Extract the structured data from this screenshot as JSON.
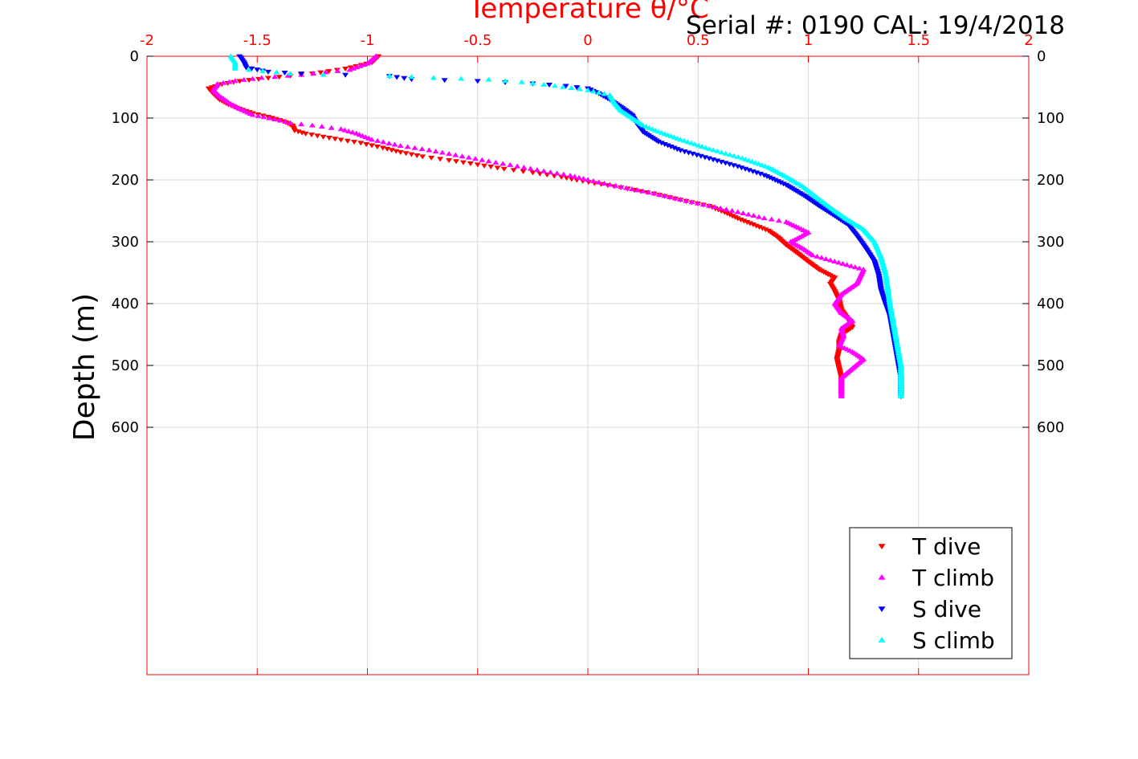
{
  "header": {
    "serial_text": "Serial #: 0190  CAL: 19/4/2018"
  },
  "colors": {
    "x_axis": "#ff0000",
    "y_axis": "#000000",
    "grid": "#d9d9d9",
    "T_dive": "#ff0000",
    "T_climb": "#ff00ff",
    "S_dive": "#0000ff",
    "S_climb": "#00ffff"
  },
  "chart_data": {
    "type": "scatter",
    "title": "Temperature θ/°C",
    "xlabel": "Temperature θ/°C",
    "ylabel": "Depth (m)",
    "xlim": [
      -2,
      2
    ],
    "ylim": [
      0,
      1000
    ],
    "y_reversed": true,
    "x_ticks": [
      -2,
      -1.5,
      -1,
      -0.5,
      0,
      0.5,
      1,
      1.5,
      2
    ],
    "x_tick_labels": [
      "-2",
      "-1.5",
      "-1",
      "-0.5",
      "0",
      "0.5",
      "1",
      "1.5",
      "2"
    ],
    "y_ticks": [
      0,
      100,
      200,
      300,
      400,
      500,
      600
    ],
    "y_tick_labels": [
      "0",
      "100",
      "200",
      "300",
      "400",
      "500",
      "600"
    ],
    "x_axis_location": "top",
    "y_axis_both_sides": true,
    "grid": true,
    "legend_position": "bottom-right",
    "series": [
      {
        "name": "T dive",
        "marker": "triangle-down",
        "points": [
          [
            -0.95,
            0
          ],
          [
            -0.98,
            10
          ],
          [
            -1.1,
            20
          ],
          [
            -1.25,
            28
          ],
          [
            -1.45,
            35
          ],
          [
            -1.58,
            40
          ],
          [
            -1.66,
            45
          ],
          [
            -1.72,
            52
          ],
          [
            -1.7,
            60
          ],
          [
            -1.67,
            70
          ],
          [
            -1.63,
            78
          ],
          [
            -1.58,
            85
          ],
          [
            -1.52,
            92
          ],
          [
            -1.45,
            98
          ],
          [
            -1.38,
            105
          ],
          [
            -1.34,
            112
          ],
          [
            -1.33,
            120
          ],
          [
            -1.28,
            125
          ],
          [
            -1.2,
            130
          ],
          [
            -1.12,
            135
          ],
          [
            -1.03,
            140
          ],
          [
            -0.93,
            148
          ],
          [
            -0.85,
            155
          ],
          [
            -0.75,
            162
          ],
          [
            -0.63,
            168
          ],
          [
            -0.5,
            175
          ],
          [
            -0.38,
            182
          ],
          [
            -0.25,
            188
          ],
          [
            -0.12,
            195
          ],
          [
            -0.05,
            200
          ],
          [
            0.03,
            205
          ],
          [
            0.15,
            212
          ],
          [
            0.3,
            222
          ],
          [
            0.42,
            232
          ],
          [
            0.55,
            242
          ],
          [
            0.62,
            252
          ],
          [
            0.68,
            262
          ],
          [
            0.75,
            272
          ],
          [
            0.82,
            282
          ],
          [
            0.86,
            292
          ],
          [
            0.9,
            305
          ],
          [
            0.95,
            318
          ],
          [
            1.0,
            332
          ],
          [
            1.05,
            345
          ],
          [
            1.12,
            358
          ],
          [
            1.1,
            368
          ],
          [
            1.12,
            380
          ],
          [
            1.14,
            395
          ],
          [
            1.15,
            410
          ],
          [
            1.18,
            425
          ],
          [
            1.2,
            438
          ],
          [
            1.15,
            450
          ],
          [
            1.14,
            462
          ],
          [
            1.14,
            475
          ],
          [
            1.13,
            490
          ],
          [
            1.14,
            505
          ],
          [
            1.15,
            520
          ],
          [
            1.15,
            535
          ],
          [
            1.15,
            548
          ]
        ]
      },
      {
        "name": "T climb",
        "marker": "triangle-up",
        "points": [
          [
            -0.96,
            0
          ],
          [
            -1.0,
            12
          ],
          [
            -1.08,
            22
          ],
          [
            -1.3,
            30
          ],
          [
            -1.48,
            35
          ],
          [
            -1.6,
            40
          ],
          [
            -1.68,
            45
          ],
          [
            -1.7,
            55
          ],
          [
            -1.67,
            65
          ],
          [
            -1.63,
            75
          ],
          [
            -1.58,
            85
          ],
          [
            -1.52,
            95
          ],
          [
            -1.42,
            102
          ],
          [
            -1.35,
            108
          ],
          [
            -1.25,
            112
          ],
          [
            -1.12,
            118
          ],
          [
            -1.05,
            125
          ],
          [
            -0.98,
            135
          ],
          [
            -0.85,
            145
          ],
          [
            -0.72,
            152
          ],
          [
            -0.6,
            160
          ],
          [
            -0.45,
            170
          ],
          [
            -0.32,
            178
          ],
          [
            -0.2,
            186
          ],
          [
            -0.08,
            193
          ],
          [
            0.0,
            200
          ],
          [
            0.1,
            208
          ],
          [
            0.2,
            215
          ],
          [
            0.3,
            222
          ],
          [
            0.42,
            232
          ],
          [
            0.55,
            242
          ],
          [
            0.68,
            252
          ],
          [
            0.8,
            262
          ],
          [
            0.9,
            268
          ],
          [
            1.0,
            285
          ],
          [
            0.95,
            295
          ],
          [
            0.92,
            300
          ],
          [
            0.98,
            312
          ],
          [
            1.02,
            322
          ],
          [
            1.1,
            330
          ],
          [
            1.25,
            345
          ],
          [
            1.22,
            368
          ],
          [
            1.15,
            385
          ],
          [
            1.12,
            400
          ],
          [
            1.15,
            415
          ],
          [
            1.2,
            428
          ],
          [
            1.15,
            440
          ],
          [
            1.16,
            452
          ],
          [
            1.14,
            468
          ],
          [
            1.2,
            478
          ],
          [
            1.25,
            490
          ],
          [
            1.2,
            505
          ],
          [
            1.15,
            520
          ],
          [
            1.15,
            535
          ],
          [
            1.15,
            550
          ]
        ]
      },
      {
        "name": "S dive",
        "marker": "triangle-down",
        "points": [
          [
            -1.58,
            0
          ],
          [
            -1.56,
            10
          ],
          [
            -1.55,
            18
          ],
          [
            -1.45,
            25
          ],
          [
            -1.3,
            28
          ],
          [
            -1.1,
            30
          ],
          [
            -0.9,
            32
          ],
          [
            -0.8,
            37
          ],
          [
            -0.5,
            40
          ],
          [
            -0.25,
            44
          ],
          [
            -0.1,
            48
          ],
          [
            0.0,
            52
          ],
          [
            0.05,
            60
          ],
          [
            0.1,
            70
          ],
          [
            0.15,
            82
          ],
          [
            0.2,
            95
          ],
          [
            0.22,
            108
          ],
          [
            0.25,
            122
          ],
          [
            0.32,
            138
          ],
          [
            0.42,
            152
          ],
          [
            0.55,
            165
          ],
          [
            0.68,
            178
          ],
          [
            0.8,
            192
          ],
          [
            0.9,
            208
          ],
          [
            0.98,
            225
          ],
          [
            1.05,
            242
          ],
          [
            1.12,
            258
          ],
          [
            1.18,
            272
          ],
          [
            1.22,
            290
          ],
          [
            1.26,
            310
          ],
          [
            1.3,
            332
          ],
          [
            1.32,
            355
          ],
          [
            1.33,
            378
          ],
          [
            1.35,
            400
          ],
          [
            1.37,
            420
          ],
          [
            1.38,
            440
          ],
          [
            1.39,
            460
          ],
          [
            1.4,
            480
          ],
          [
            1.41,
            500
          ],
          [
            1.42,
            520
          ],
          [
            1.42,
            540
          ],
          [
            1.42,
            550
          ]
        ]
      },
      {
        "name": "S climb",
        "marker": "triangle-up",
        "points": [
          [
            -1.62,
            0
          ],
          [
            -1.6,
            10
          ],
          [
            -1.6,
            20
          ],
          [
            -1.35,
            28
          ],
          [
            -1.2,
            30
          ],
          [
            -0.9,
            32
          ],
          [
            -0.7,
            35
          ],
          [
            -0.45,
            38
          ],
          [
            -0.3,
            42
          ],
          [
            -0.15,
            48
          ],
          [
            0.0,
            55
          ],
          [
            0.1,
            63
          ],
          [
            0.12,
            75
          ],
          [
            0.15,
            88
          ],
          [
            0.2,
            100
          ],
          [
            0.25,
            112
          ],
          [
            0.32,
            122
          ],
          [
            0.42,
            135
          ],
          [
            0.55,
            150
          ],
          [
            0.7,
            165
          ],
          [
            0.82,
            180
          ],
          [
            0.9,
            195
          ],
          [
            0.98,
            212
          ],
          [
            1.05,
            232
          ],
          [
            1.12,
            250
          ],
          [
            1.18,
            265
          ],
          [
            1.25,
            280
          ],
          [
            1.3,
            300
          ],
          [
            1.33,
            325
          ],
          [
            1.35,
            350
          ],
          [
            1.36,
            375
          ],
          [
            1.37,
            400
          ],
          [
            1.38,
            420
          ],
          [
            1.39,
            440
          ],
          [
            1.4,
            460
          ],
          [
            1.41,
            480
          ],
          [
            1.42,
            500
          ],
          [
            1.42,
            520
          ],
          [
            1.42,
            540
          ],
          [
            1.42,
            550
          ]
        ]
      }
    ]
  }
}
